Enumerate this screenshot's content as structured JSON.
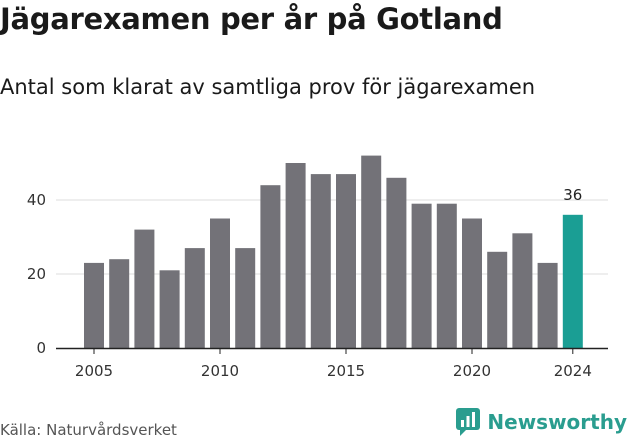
{
  "title": "Jägarexamen per år på Gotland",
  "subtitle": "Antal som klarat av samtliga prov för jägarexamen",
  "source": "Källa: Naturvårdsverket",
  "brand": {
    "name": "Newsworthy",
    "icon": "newsworthy-logo-icon"
  },
  "colors": {
    "bar": "#737278",
    "highlight": "#1a9e94",
    "brand": "#2a9d8f",
    "grid": "#dddddd",
    "axis": "#222222"
  },
  "chart_data": {
    "type": "bar",
    "title": "Jägarexamen per år på Gotland",
    "subtitle": "Antal som klarat av samtliga prov för jägarexamen",
    "xlabel": "",
    "ylabel": "",
    "categories": [
      2005,
      2006,
      2007,
      2008,
      2009,
      2010,
      2011,
      2012,
      2013,
      2014,
      2015,
      2016,
      2017,
      2018,
      2019,
      2020,
      2021,
      2022,
      2023,
      2024
    ],
    "values": [
      23,
      24,
      32,
      21,
      27,
      35,
      27,
      44,
      50,
      47,
      47,
      52,
      46,
      39,
      39,
      35,
      26,
      31,
      23,
      36
    ],
    "highlight_category": 2024,
    "highlight_label": "36",
    "x_ticks": [
      "2005",
      "2010",
      "2015",
      "2020",
      "2024"
    ],
    "y_ticks": [
      "0",
      "20",
      "40"
    ],
    "ylim": [
      0,
      55
    ],
    "grid": true,
    "legend": "none"
  }
}
